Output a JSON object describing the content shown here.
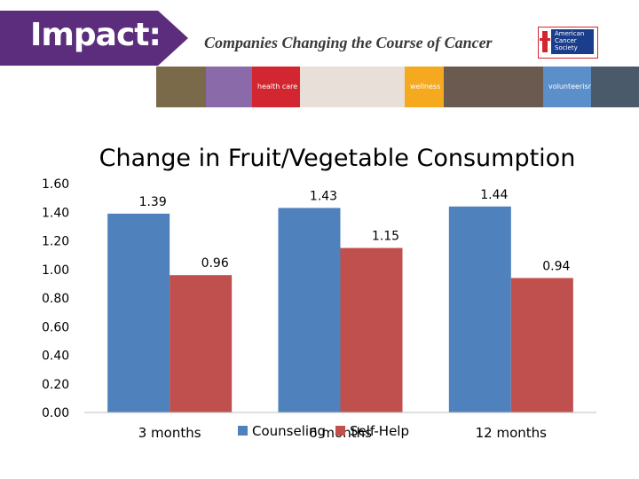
{
  "banner": {
    "impact_label": "Impact:",
    "tagline": "Companies Changing the Course of Cancer",
    "logo_text": "American\nCancer\nSociety",
    "strip_labels": [
      "health care",
      "wellness",
      "volunteerism"
    ],
    "colors": {
      "purple": "#5b2d7c",
      "red": "#d22630",
      "orange": "#f4a91f",
      "blue": "#5b8fc9"
    }
  },
  "chart_data": {
    "type": "bar",
    "title": "Change in Fruit/Vegetable Consumption",
    "categories": [
      "3 months",
      "6 months",
      "12 months"
    ],
    "series": [
      {
        "name": "Counseling",
        "values": [
          1.39,
          1.43,
          1.44
        ],
        "color": "#4f81bd"
      },
      {
        "name": "Self-Help",
        "values": [
          0.96,
          1.15,
          0.94
        ],
        "color": "#c0504d"
      }
    ],
    "data_labels": [
      [
        "1.39",
        "1.43",
        "1.44"
      ],
      [
        "0.96",
        "1.15",
        "0.94"
      ]
    ],
    "ylim": [
      0,
      1.6
    ],
    "yticks": [
      "0.00",
      "0.20",
      "0.40",
      "0.60",
      "0.80",
      "1.00",
      "1.20",
      "1.40",
      "1.60"
    ],
    "grid": false,
    "legend": "bottom"
  }
}
